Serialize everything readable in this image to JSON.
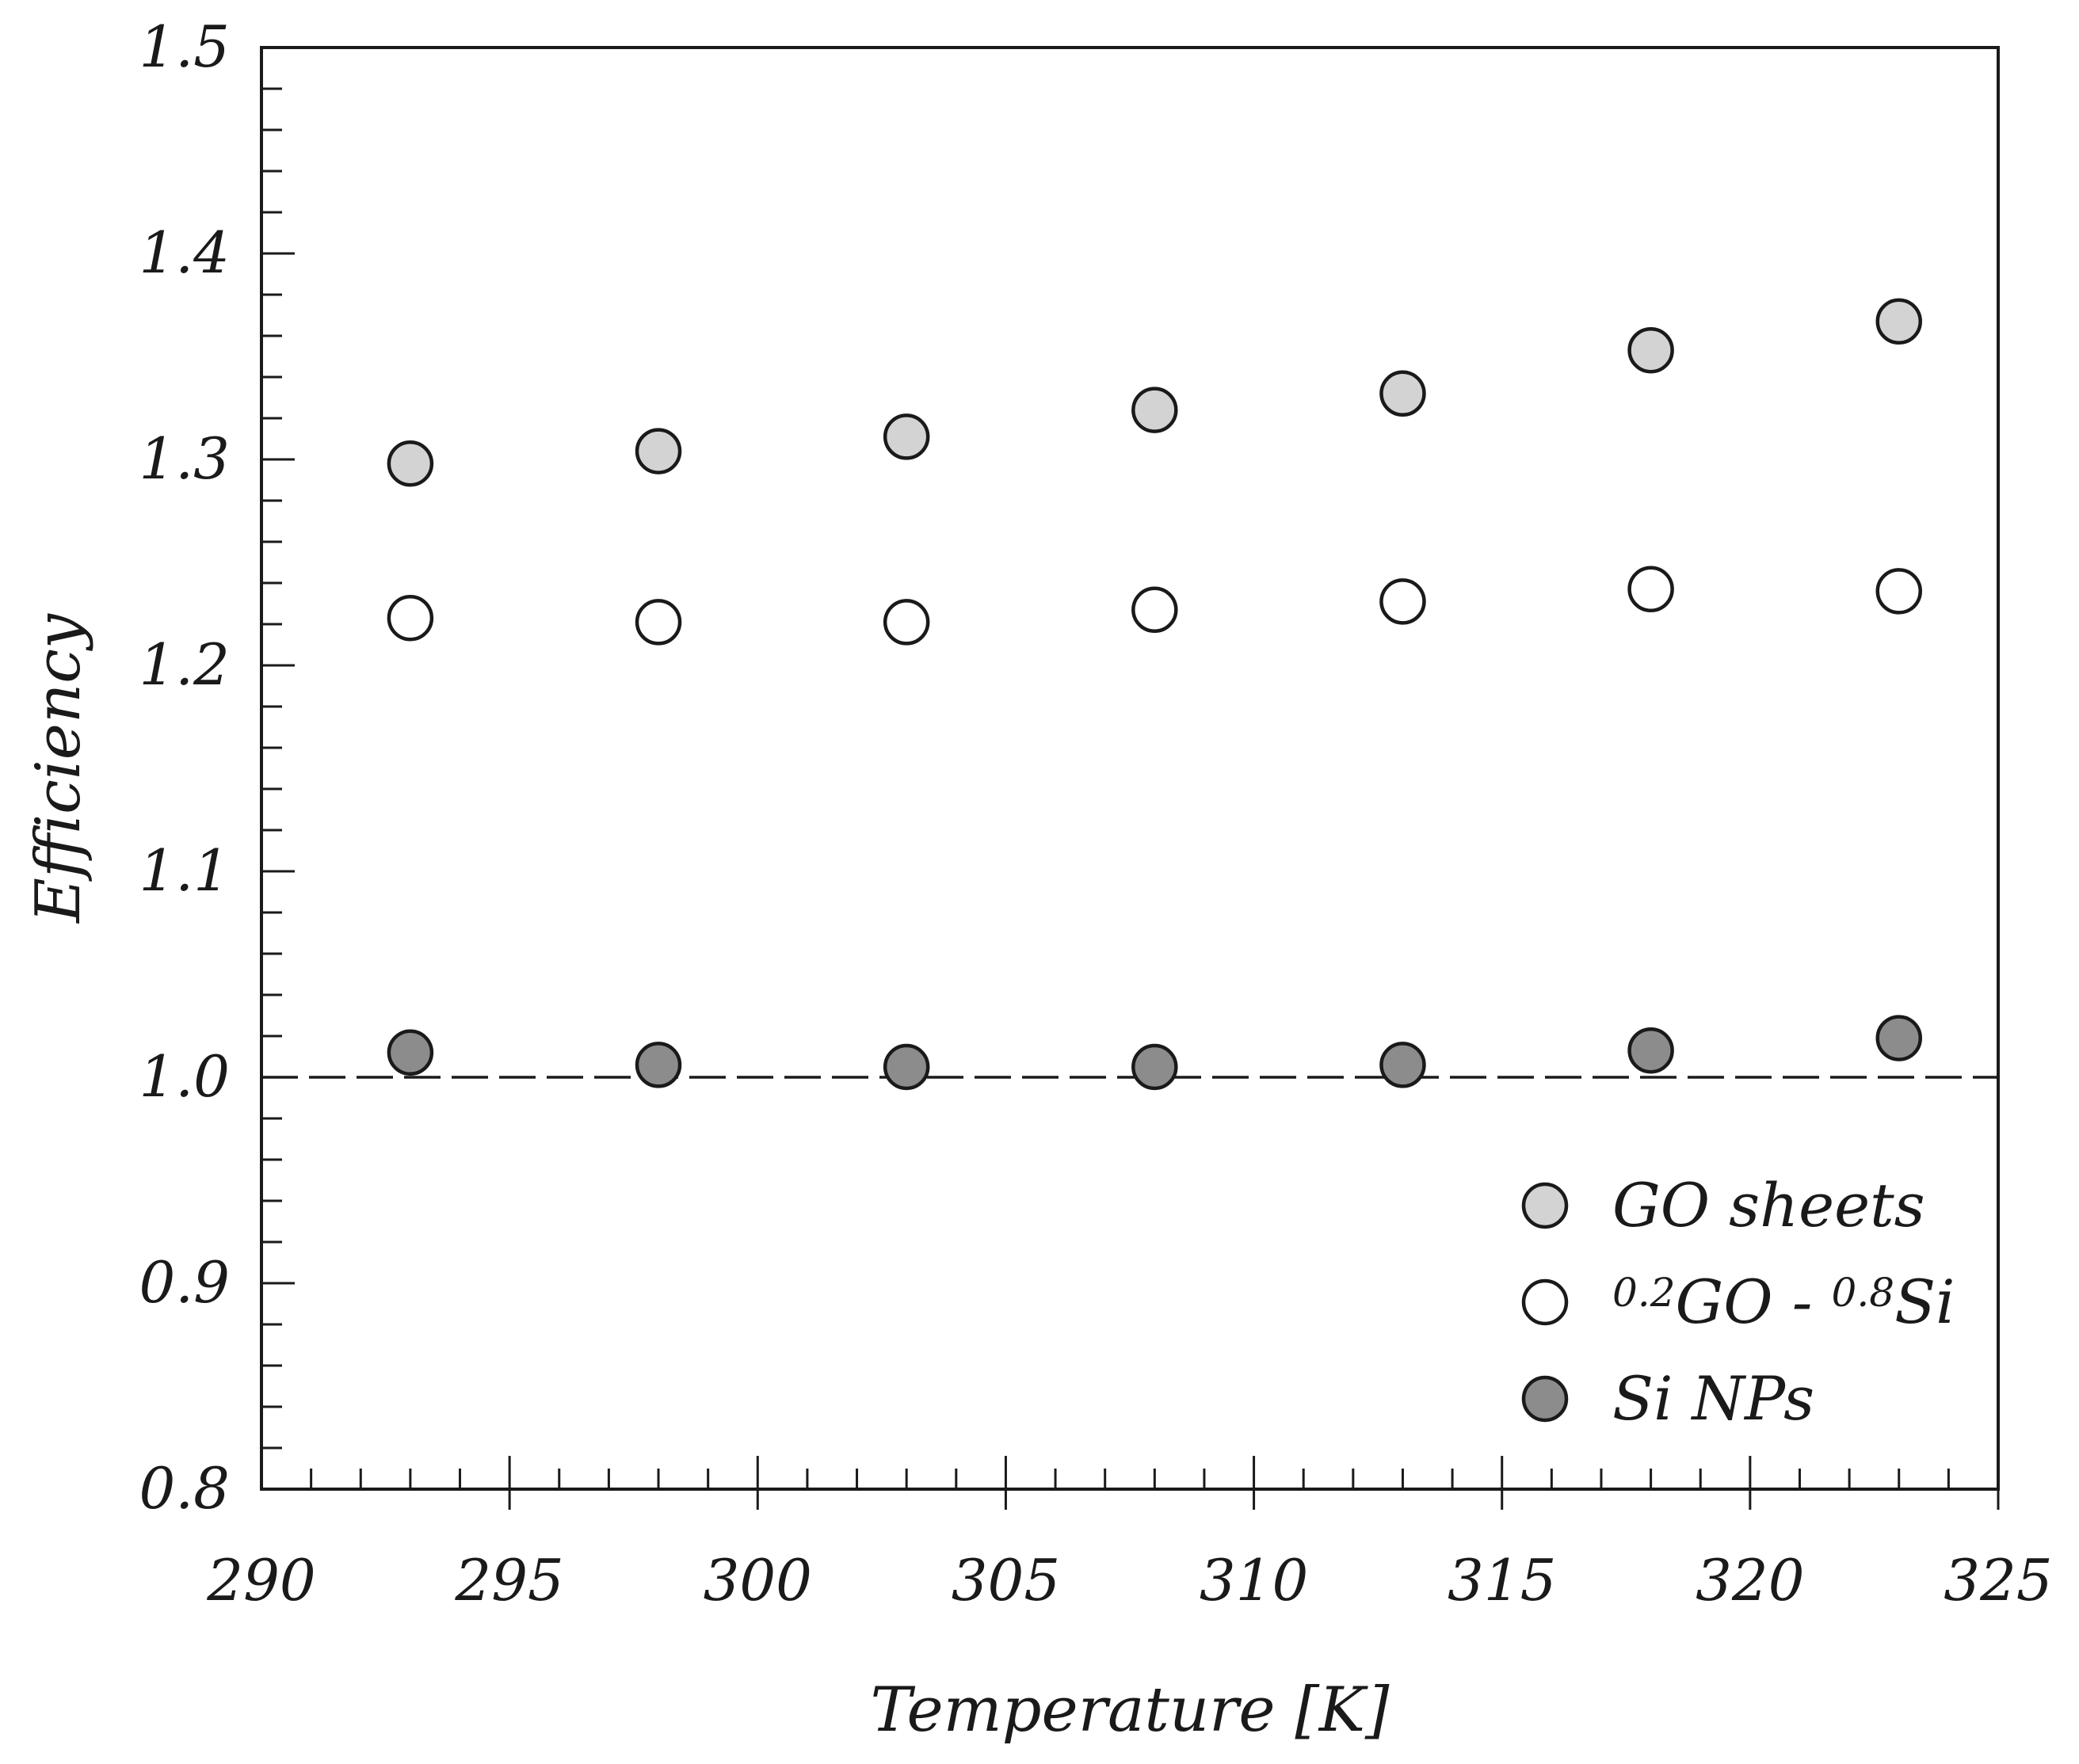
{
  "chart_data": {
    "type": "scatter",
    "title": "",
    "xlabel": "Temperature [K]",
    "ylabel": "Efficiency",
    "xlim": [
      290,
      325
    ],
    "ylim": [
      0.8,
      1.5
    ],
    "x_ticks": [
      290,
      295,
      300,
      305,
      310,
      315,
      320,
      325
    ],
    "y_ticks": [
      0.8,
      0.9,
      1.0,
      1.1,
      1.2,
      1.3,
      1.4,
      1.5
    ],
    "x_tick_labels": [
      "290",
      "295",
      "300",
      "305",
      "310",
      "315",
      "320",
      "325"
    ],
    "y_tick_labels": [
      "0.8",
      "0.9",
      "1.0",
      "1.1",
      "1.2",
      "1.3",
      "1.4",
      "1.5"
    ],
    "grid": false,
    "reference_line": {
      "y": 1.0,
      "style": "dashed"
    },
    "legend": {
      "placement": "bottom-right"
    },
    "series": [
      {
        "name": "GO sheets",
        "fill": "#d3d3d3",
        "x": [
          293,
          298,
          303,
          308,
          313,
          318,
          323
        ],
        "y": [
          1.298,
          1.304,
          1.311,
          1.324,
          1.332,
          1.353,
          1.367
        ]
      },
      {
        "name": "0.2GO - 0.8Si",
        "name_parts": [
          {
            "text": "0.2",
            "sup": true
          },
          {
            "text": "GO - ",
            "sup": false
          },
          {
            "text": "0.8",
            "sup": true
          },
          {
            "text": "Si",
            "sup": false
          }
        ],
        "fill": "#ffffff",
        "x": [
          293,
          298,
          303,
          308,
          313,
          318,
          323
        ],
        "y": [
          1.223,
          1.221,
          1.221,
          1.227,
          1.231,
          1.237,
          1.236
        ]
      },
      {
        "name": "Si NPs",
        "fill": "#8c8c8c",
        "x": [
          293,
          298,
          303,
          308,
          313,
          318,
          323
        ],
        "y": [
          1.012,
          1.006,
          1.005,
          1.005,
          1.006,
          1.013,
          1.019
        ]
      }
    ]
  }
}
